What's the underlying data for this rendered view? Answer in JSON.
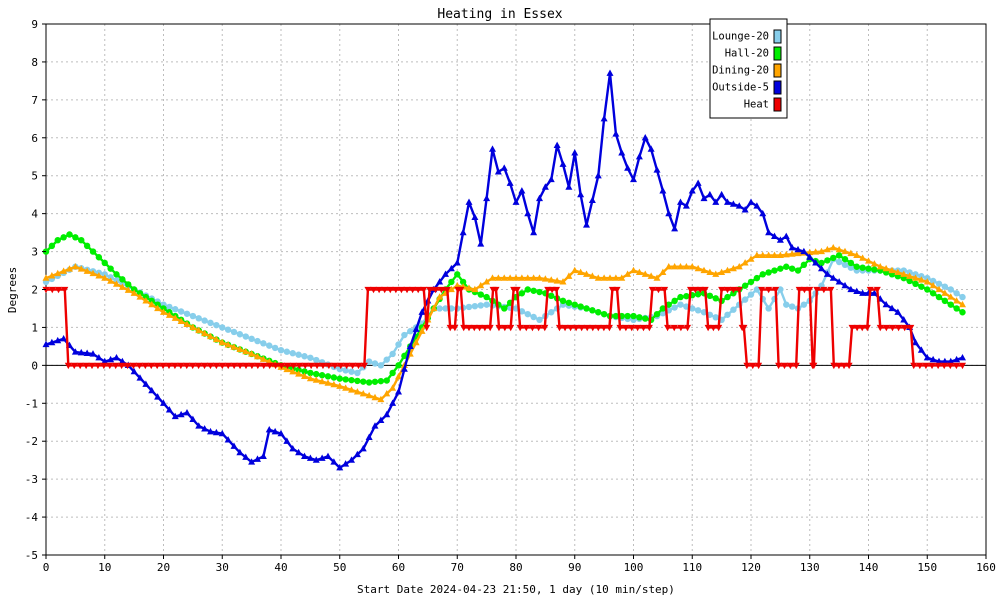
{
  "chart_data": {
    "type": "line",
    "title": "Heating in Essex",
    "xlabel": "Start Date 2024-04-23 21:50, 1 day (10 min/step)",
    "ylabel": "Degrees",
    "xlim": [
      0,
      160
    ],
    "ylim": [
      -5,
      9
    ],
    "x_ticks": [
      0,
      10,
      20,
      30,
      40,
      50,
      60,
      70,
      80,
      90,
      100,
      110,
      120,
      130,
      140,
      150,
      160
    ],
    "y_ticks": [
      -5,
      -4,
      -3,
      -2,
      -1,
      0,
      1,
      2,
      3,
      4,
      5,
      6,
      7,
      8,
      9
    ],
    "grid": true,
    "legend_position": "top-right",
    "series": [
      {
        "name": "Lounge-20",
        "color": "#87ceeb",
        "marker": "circle",
        "points": [
          [
            0,
            2.2
          ],
          [
            5,
            2.6
          ],
          [
            10,
            2.4
          ],
          [
            15,
            2.0
          ],
          [
            20,
            1.6
          ],
          [
            25,
            1.3
          ],
          [
            30,
            1.0
          ],
          [
            35,
            0.7
          ],
          [
            40,
            0.4
          ],
          [
            45,
            0.2
          ],
          [
            50,
            -0.1
          ],
          [
            53,
            -0.2
          ],
          [
            55,
            0.1
          ],
          [
            57,
            0.0
          ],
          [
            59,
            0.3
          ],
          [
            61,
            0.8
          ],
          [
            64,
            1.1
          ],
          [
            66,
            1.5
          ],
          [
            70,
            1.5
          ],
          [
            75,
            1.6
          ],
          [
            80,
            1.5
          ],
          [
            84,
            1.2
          ],
          [
            88,
            1.6
          ],
          [
            92,
            1.5
          ],
          [
            96,
            1.3
          ],
          [
            100,
            1.2
          ],
          [
            104,
            1.3
          ],
          [
            108,
            1.6
          ],
          [
            112,
            1.4
          ],
          [
            115,
            1.2
          ],
          [
            118,
            1.6
          ],
          [
            121,
            2.0
          ],
          [
            123,
            1.5
          ],
          [
            125,
            2.0
          ],
          [
            126,
            1.6
          ],
          [
            128,
            1.5
          ],
          [
            130,
            1.7
          ],
          [
            132,
            2.1
          ],
          [
            134,
            2.8
          ],
          [
            138,
            2.5
          ],
          [
            142,
            2.5
          ],
          [
            146,
            2.5
          ],
          [
            150,
            2.3
          ],
          [
            154,
            2.0
          ],
          [
            156,
            1.8
          ]
        ]
      },
      {
        "name": "Hall-20",
        "color": "#00ee00",
        "marker": "circle",
        "points": [
          [
            0,
            3.0
          ],
          [
            2,
            3.3
          ],
          [
            4,
            3.45
          ],
          [
            6,
            3.3
          ],
          [
            8,
            3.0
          ],
          [
            10,
            2.7
          ],
          [
            12,
            2.4
          ],
          [
            15,
            2.0
          ],
          [
            20,
            1.5
          ],
          [
            25,
            1.0
          ],
          [
            30,
            0.6
          ],
          [
            35,
            0.3
          ],
          [
            40,
            0.0
          ],
          [
            45,
            -0.2
          ],
          [
            50,
            -0.35
          ],
          [
            55,
            -0.45
          ],
          [
            58,
            -0.4
          ],
          [
            60,
            0.0
          ],
          [
            62,
            0.5
          ],
          [
            64,
            1.0
          ],
          [
            66,
            1.5
          ],
          [
            68,
            2.0
          ],
          [
            70,
            2.4
          ],
          [
            72,
            2.0
          ],
          [
            75,
            1.8
          ],
          [
            78,
            1.5
          ],
          [
            80,
            1.8
          ],
          [
            82,
            2.0
          ],
          [
            85,
            1.9
          ],
          [
            88,
            1.7
          ],
          [
            92,
            1.5
          ],
          [
            96,
            1.3
          ],
          [
            100,
            1.3
          ],
          [
            103,
            1.2
          ],
          [
            105,
            1.5
          ],
          [
            108,
            1.8
          ],
          [
            112,
            1.9
          ],
          [
            115,
            1.7
          ],
          [
            118,
            2.0
          ],
          [
            122,
            2.4
          ],
          [
            126,
            2.6
          ],
          [
            128,
            2.5
          ],
          [
            130,
            2.8
          ],
          [
            132,
            2.7
          ],
          [
            135,
            2.9
          ],
          [
            138,
            2.6
          ],
          [
            142,
            2.5
          ],
          [
            146,
            2.3
          ],
          [
            150,
            2.0
          ],
          [
            154,
            1.6
          ],
          [
            156,
            1.4
          ]
        ]
      },
      {
        "name": "Dining-20",
        "color": "#ffa500",
        "marker": "triangle",
        "points": [
          [
            0,
            2.3
          ],
          [
            5,
            2.6
          ],
          [
            10,
            2.3
          ],
          [
            15,
            1.9
          ],
          [
            20,
            1.4
          ],
          [
            25,
            1.0
          ],
          [
            30,
            0.6
          ],
          [
            35,
            0.3
          ],
          [
            40,
            -0.05
          ],
          [
            45,
            -0.35
          ],
          [
            50,
            -0.55
          ],
          [
            55,
            -0.8
          ],
          [
            57,
            -0.9
          ],
          [
            59,
            -0.6
          ],
          [
            61,
            0.0
          ],
          [
            63,
            0.6
          ],
          [
            65,
            1.2
          ],
          [
            67,
            1.8
          ],
          [
            70,
            2.1
          ],
          [
            73,
            2.0
          ],
          [
            76,
            2.3
          ],
          [
            80,
            2.3
          ],
          [
            84,
            2.3
          ],
          [
            88,
            2.2
          ],
          [
            90,
            2.5
          ],
          [
            94,
            2.3
          ],
          [
            98,
            2.3
          ],
          [
            100,
            2.5
          ],
          [
            104,
            2.3
          ],
          [
            106,
            2.6
          ],
          [
            110,
            2.6
          ],
          [
            114,
            2.4
          ],
          [
            118,
            2.6
          ],
          [
            121,
            2.9
          ],
          [
            125,
            2.9
          ],
          [
            128,
            2.95
          ],
          [
            132,
            3.0
          ],
          [
            134,
            3.1
          ],
          [
            138,
            2.9
          ],
          [
            142,
            2.6
          ],
          [
            146,
            2.4
          ],
          [
            150,
            2.2
          ],
          [
            154,
            1.8
          ],
          [
            156,
            1.6
          ]
        ]
      },
      {
        "name": "Outside-5",
        "color": "#0000dd",
        "marker": "triangle",
        "points": [
          [
            0,
            0.55
          ],
          [
            3,
            0.7
          ],
          [
            5,
            0.35
          ],
          [
            8,
            0.3
          ],
          [
            10,
            0.1
          ],
          [
            12,
            0.2
          ],
          [
            14,
            0.0
          ],
          [
            17,
            -0.5
          ],
          [
            20,
            -1.0
          ],
          [
            22,
            -1.35
          ],
          [
            24,
            -1.25
          ],
          [
            26,
            -1.6
          ],
          [
            28,
            -1.75
          ],
          [
            30,
            -1.8
          ],
          [
            33,
            -2.3
          ],
          [
            35,
            -2.55
          ],
          [
            37,
            -2.4
          ],
          [
            38,
            -1.7
          ],
          [
            40,
            -1.8
          ],
          [
            42,
            -2.2
          ],
          [
            44,
            -2.4
          ],
          [
            46,
            -2.5
          ],
          [
            48,
            -2.4
          ],
          [
            50,
            -2.7
          ],
          [
            52,
            -2.5
          ],
          [
            54,
            -2.2
          ],
          [
            56,
            -1.6
          ],
          [
            58,
            -1.3
          ],
          [
            60,
            -0.7
          ],
          [
            62,
            0.5
          ],
          [
            64,
            1.4
          ],
          [
            66,
            2.0
          ],
          [
            68,
            2.4
          ],
          [
            70,
            2.7
          ],
          [
            71,
            3.5
          ],
          [
            72,
            4.3
          ],
          [
            73,
            3.9
          ],
          [
            74,
            3.2
          ],
          [
            75,
            4.4
          ],
          [
            76,
            5.7
          ],
          [
            77,
            5.1
          ],
          [
            78,
            5.2
          ],
          [
            79,
            4.8
          ],
          [
            80,
            4.3
          ],
          [
            81,
            4.6
          ],
          [
            82,
            4.0
          ],
          [
            83,
            3.5
          ],
          [
            84,
            4.4
          ],
          [
            85,
            4.7
          ],
          [
            86,
            4.9
          ],
          [
            87,
            5.8
          ],
          [
            88,
            5.3
          ],
          [
            89,
            4.7
          ],
          [
            90,
            5.6
          ],
          [
            91,
            4.5
          ],
          [
            92,
            3.7
          ],
          [
            94,
            5.0
          ],
          [
            95,
            6.5
          ],
          [
            96,
            7.7
          ],
          [
            97,
            6.1
          ],
          [
            98,
            5.6
          ],
          [
            99,
            5.2
          ],
          [
            100,
            4.9
          ],
          [
            101,
            5.5
          ],
          [
            102,
            6.0
          ],
          [
            103,
            5.7
          ],
          [
            105,
            4.6
          ],
          [
            106,
            4.0
          ],
          [
            107,
            3.6
          ],
          [
            108,
            4.3
          ],
          [
            109,
            4.2
          ],
          [
            110,
            4.6
          ],
          [
            111,
            4.8
          ],
          [
            112,
            4.4
          ],
          [
            113,
            4.5
          ],
          [
            114,
            4.3
          ],
          [
            115,
            4.5
          ],
          [
            116,
            4.3
          ],
          [
            118,
            4.2
          ],
          [
            119,
            4.1
          ],
          [
            120,
            4.3
          ],
          [
            121,
            4.2
          ],
          [
            122,
            4.0
          ],
          [
            123,
            3.5
          ],
          [
            125,
            3.3
          ],
          [
            126,
            3.4
          ],
          [
            127,
            3.1
          ],
          [
            129,
            3.0
          ],
          [
            131,
            2.7
          ],
          [
            133,
            2.4
          ],
          [
            135,
            2.2
          ],
          [
            137,
            2.0
          ],
          [
            139,
            1.9
          ],
          [
            141,
            1.9
          ],
          [
            143,
            1.6
          ],
          [
            145,
            1.4
          ],
          [
            147,
            1.0
          ],
          [
            148,
            0.6
          ],
          [
            150,
            0.2
          ],
          [
            152,
            0.1
          ],
          [
            154,
            0.1
          ],
          [
            156,
            0.2
          ]
        ]
      },
      {
        "name": "Heat",
        "color": "#ee0000",
        "marker": "triangle-down",
        "points": [
          [
            0,
            2.0
          ],
          [
            3.2,
            2.0
          ],
          [
            3.8,
            0.0
          ],
          [
            54.2,
            0.0
          ],
          [
            54.8,
            2.0
          ],
          [
            64.3,
            2.0
          ],
          [
            64.8,
            1.0
          ],
          [
            65.3,
            2.0
          ],
          [
            68.3,
            2.0
          ],
          [
            68.8,
            1.0
          ],
          [
            69.6,
            1.0
          ],
          [
            70.1,
            2.0
          ],
          [
            70.6,
            2.0
          ],
          [
            71.1,
            1.0
          ],
          [
            75.6,
            1.0
          ],
          [
            76.1,
            2.0
          ],
          [
            76.6,
            2.0
          ],
          [
            77.1,
            1.0
          ],
          [
            79.1,
            1.0
          ],
          [
            79.6,
            2.0
          ],
          [
            80.2,
            2.0
          ],
          [
            80.7,
            1.0
          ],
          [
            84.9,
            1.0
          ],
          [
            85.4,
            2.0
          ],
          [
            86.9,
            2.0
          ],
          [
            87.4,
            1.0
          ],
          [
            95.9,
            1.0
          ],
          [
            96.4,
            2.0
          ],
          [
            97.2,
            2.0
          ],
          [
            97.7,
            1.0
          ],
          [
            102.7,
            1.0
          ],
          [
            103.2,
            2.0
          ],
          [
            105.3,
            2.0
          ],
          [
            105.8,
            1.0
          ],
          [
            109.2,
            1.0
          ],
          [
            109.7,
            2.0
          ],
          [
            112.2,
            2.0
          ],
          [
            112.7,
            1.0
          ],
          [
            114.5,
            1.0
          ],
          [
            115.0,
            2.0
          ],
          [
            118.0,
            2.0
          ],
          [
            118.5,
            1.0
          ],
          [
            118.8,
            1.0
          ],
          [
            119.3,
            0.0
          ],
          [
            121.3,
            0.0
          ],
          [
            121.8,
            2.0
          ],
          [
            124.2,
            2.0
          ],
          [
            124.7,
            0.0
          ],
          [
            127.7,
            0.0
          ],
          [
            128.2,
            2.0
          ],
          [
            130.0,
            2.0
          ],
          [
            130.5,
            0.0
          ],
          [
            130.7,
            0.0
          ],
          [
            131.2,
            2.0
          ],
          [
            133.6,
            2.0
          ],
          [
            134.1,
            0.0
          ],
          [
            136.7,
            0.0
          ],
          [
            137.2,
            1.0
          ],
          [
            139.8,
            1.0
          ],
          [
            140.3,
            2.0
          ],
          [
            141.5,
            2.0
          ],
          [
            142.0,
            1.0
          ],
          [
            147.2,
            1.0
          ],
          [
            147.7,
            0.0
          ],
          [
            156.0,
            0.0
          ]
        ]
      }
    ]
  }
}
